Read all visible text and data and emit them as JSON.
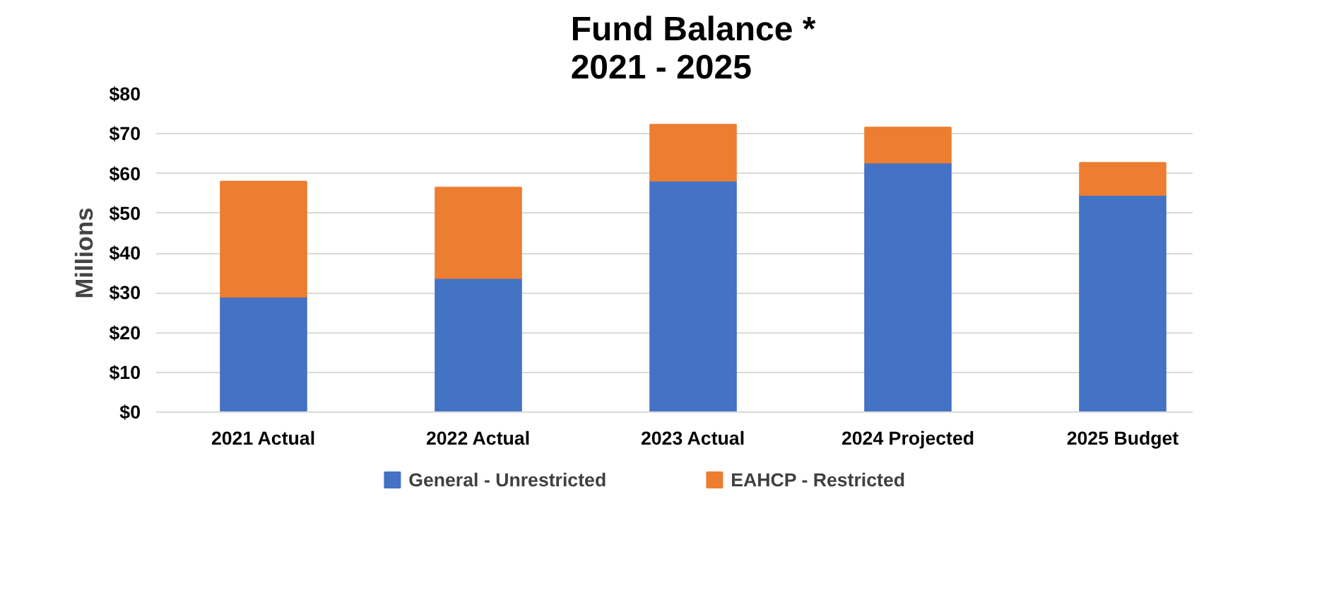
{
  "chart_data": {
    "type": "bar",
    "stacked": true,
    "title": "Fund Balance *\n2021 - 2025",
    "ylabel": "Millions",
    "categories": [
      "2021 Actual",
      "2022 Actual",
      "2023 Actual",
      "2024 Projected",
      "2025 Budget"
    ],
    "series": [
      {
        "name": "General - Unrestricted",
        "color": "#4472c4",
        "values": [
          29.0,
          33.7,
          58.2,
          62.7,
          54.6
        ]
      },
      {
        "name": "EAHCP - Restricted",
        "color": "#ed7d31",
        "values": [
          29.0,
          22.8,
          14.1,
          8.9,
          8.1
        ]
      }
    ],
    "ylim": [
      0,
      80
    ],
    "yticks": [
      {
        "value": 0,
        "label": "$0"
      },
      {
        "value": 10,
        "label": "$10"
      },
      {
        "value": 20,
        "label": "$20"
      },
      {
        "value": 30,
        "label": "$30"
      },
      {
        "value": 40,
        "label": "$40"
      },
      {
        "value": 50,
        "label": "$50"
      },
      {
        "value": 60,
        "label": "$60"
      },
      {
        "value": 70,
        "label": "$70"
      },
      {
        "value": 80,
        "label": "$80"
      }
    ],
    "grid": "y",
    "legend": "bottom"
  }
}
